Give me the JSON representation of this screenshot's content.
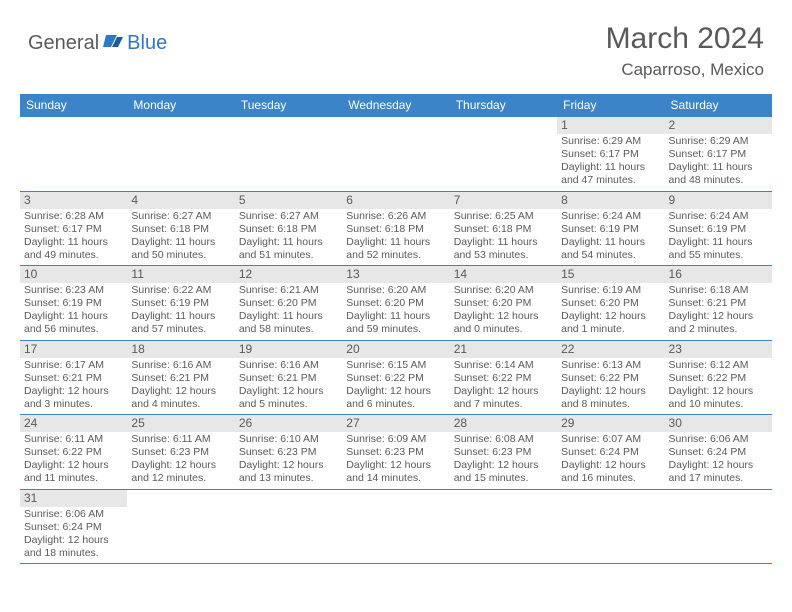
{
  "logo": {
    "text1": "General",
    "text2": "Blue"
  },
  "title": "March 2024",
  "location": "Caparroso, Mexico",
  "colors": {
    "header_bg": "#3b84c8",
    "header_text": "#ffffff",
    "daynum_bg": "#e7e7e7",
    "text": "#5a5a5a",
    "border": "#3b84c8",
    "logo_blue": "#2f79c2"
  },
  "weekdays": [
    "Sunday",
    "Monday",
    "Tuesday",
    "Wednesday",
    "Thursday",
    "Friday",
    "Saturday"
  ],
  "weeks": [
    [
      null,
      null,
      null,
      null,
      null,
      {
        "n": "1",
        "sr": "Sunrise: 6:29 AM",
        "ss": "Sunset: 6:17 PM",
        "dl": "Daylight: 11 hours and 47 minutes."
      },
      {
        "n": "2",
        "sr": "Sunrise: 6:29 AM",
        "ss": "Sunset: 6:17 PM",
        "dl": "Daylight: 11 hours and 48 minutes."
      }
    ],
    [
      {
        "n": "3",
        "sr": "Sunrise: 6:28 AM",
        "ss": "Sunset: 6:17 PM",
        "dl": "Daylight: 11 hours and 49 minutes."
      },
      {
        "n": "4",
        "sr": "Sunrise: 6:27 AM",
        "ss": "Sunset: 6:18 PM",
        "dl": "Daylight: 11 hours and 50 minutes."
      },
      {
        "n": "5",
        "sr": "Sunrise: 6:27 AM",
        "ss": "Sunset: 6:18 PM",
        "dl": "Daylight: 11 hours and 51 minutes."
      },
      {
        "n": "6",
        "sr": "Sunrise: 6:26 AM",
        "ss": "Sunset: 6:18 PM",
        "dl": "Daylight: 11 hours and 52 minutes."
      },
      {
        "n": "7",
        "sr": "Sunrise: 6:25 AM",
        "ss": "Sunset: 6:18 PM",
        "dl": "Daylight: 11 hours and 53 minutes."
      },
      {
        "n": "8",
        "sr": "Sunrise: 6:24 AM",
        "ss": "Sunset: 6:19 PM",
        "dl": "Daylight: 11 hours and 54 minutes."
      },
      {
        "n": "9",
        "sr": "Sunrise: 6:24 AM",
        "ss": "Sunset: 6:19 PM",
        "dl": "Daylight: 11 hours and 55 minutes."
      }
    ],
    [
      {
        "n": "10",
        "sr": "Sunrise: 6:23 AM",
        "ss": "Sunset: 6:19 PM",
        "dl": "Daylight: 11 hours and 56 minutes."
      },
      {
        "n": "11",
        "sr": "Sunrise: 6:22 AM",
        "ss": "Sunset: 6:19 PM",
        "dl": "Daylight: 11 hours and 57 minutes."
      },
      {
        "n": "12",
        "sr": "Sunrise: 6:21 AM",
        "ss": "Sunset: 6:20 PM",
        "dl": "Daylight: 11 hours and 58 minutes."
      },
      {
        "n": "13",
        "sr": "Sunrise: 6:20 AM",
        "ss": "Sunset: 6:20 PM",
        "dl": "Daylight: 11 hours and 59 minutes."
      },
      {
        "n": "14",
        "sr": "Sunrise: 6:20 AM",
        "ss": "Sunset: 6:20 PM",
        "dl": "Daylight: 12 hours and 0 minutes."
      },
      {
        "n": "15",
        "sr": "Sunrise: 6:19 AM",
        "ss": "Sunset: 6:20 PM",
        "dl": "Daylight: 12 hours and 1 minute."
      },
      {
        "n": "16",
        "sr": "Sunrise: 6:18 AM",
        "ss": "Sunset: 6:21 PM",
        "dl": "Daylight: 12 hours and 2 minutes."
      }
    ],
    [
      {
        "n": "17",
        "sr": "Sunrise: 6:17 AM",
        "ss": "Sunset: 6:21 PM",
        "dl": "Daylight: 12 hours and 3 minutes."
      },
      {
        "n": "18",
        "sr": "Sunrise: 6:16 AM",
        "ss": "Sunset: 6:21 PM",
        "dl": "Daylight: 12 hours and 4 minutes."
      },
      {
        "n": "19",
        "sr": "Sunrise: 6:16 AM",
        "ss": "Sunset: 6:21 PM",
        "dl": "Daylight: 12 hours and 5 minutes."
      },
      {
        "n": "20",
        "sr": "Sunrise: 6:15 AM",
        "ss": "Sunset: 6:22 PM",
        "dl": "Daylight: 12 hours and 6 minutes."
      },
      {
        "n": "21",
        "sr": "Sunrise: 6:14 AM",
        "ss": "Sunset: 6:22 PM",
        "dl": "Daylight: 12 hours and 7 minutes."
      },
      {
        "n": "22",
        "sr": "Sunrise: 6:13 AM",
        "ss": "Sunset: 6:22 PM",
        "dl": "Daylight: 12 hours and 8 minutes."
      },
      {
        "n": "23",
        "sr": "Sunrise: 6:12 AM",
        "ss": "Sunset: 6:22 PM",
        "dl": "Daylight: 12 hours and 10 minutes."
      }
    ],
    [
      {
        "n": "24",
        "sr": "Sunrise: 6:11 AM",
        "ss": "Sunset: 6:22 PM",
        "dl": "Daylight: 12 hours and 11 minutes."
      },
      {
        "n": "25",
        "sr": "Sunrise: 6:11 AM",
        "ss": "Sunset: 6:23 PM",
        "dl": "Daylight: 12 hours and 12 minutes."
      },
      {
        "n": "26",
        "sr": "Sunrise: 6:10 AM",
        "ss": "Sunset: 6:23 PM",
        "dl": "Daylight: 12 hours and 13 minutes."
      },
      {
        "n": "27",
        "sr": "Sunrise: 6:09 AM",
        "ss": "Sunset: 6:23 PM",
        "dl": "Daylight: 12 hours and 14 minutes."
      },
      {
        "n": "28",
        "sr": "Sunrise: 6:08 AM",
        "ss": "Sunset: 6:23 PM",
        "dl": "Daylight: 12 hours and 15 minutes."
      },
      {
        "n": "29",
        "sr": "Sunrise: 6:07 AM",
        "ss": "Sunset: 6:24 PM",
        "dl": "Daylight: 12 hours and 16 minutes."
      },
      {
        "n": "30",
        "sr": "Sunrise: 6:06 AM",
        "ss": "Sunset: 6:24 PM",
        "dl": "Daylight: 12 hours and 17 minutes."
      }
    ],
    [
      {
        "n": "31",
        "sr": "Sunrise: 6:06 AM",
        "ss": "Sunset: 6:24 PM",
        "dl": "Daylight: 12 hours and 18 minutes."
      },
      null,
      null,
      null,
      null,
      null,
      null
    ]
  ]
}
